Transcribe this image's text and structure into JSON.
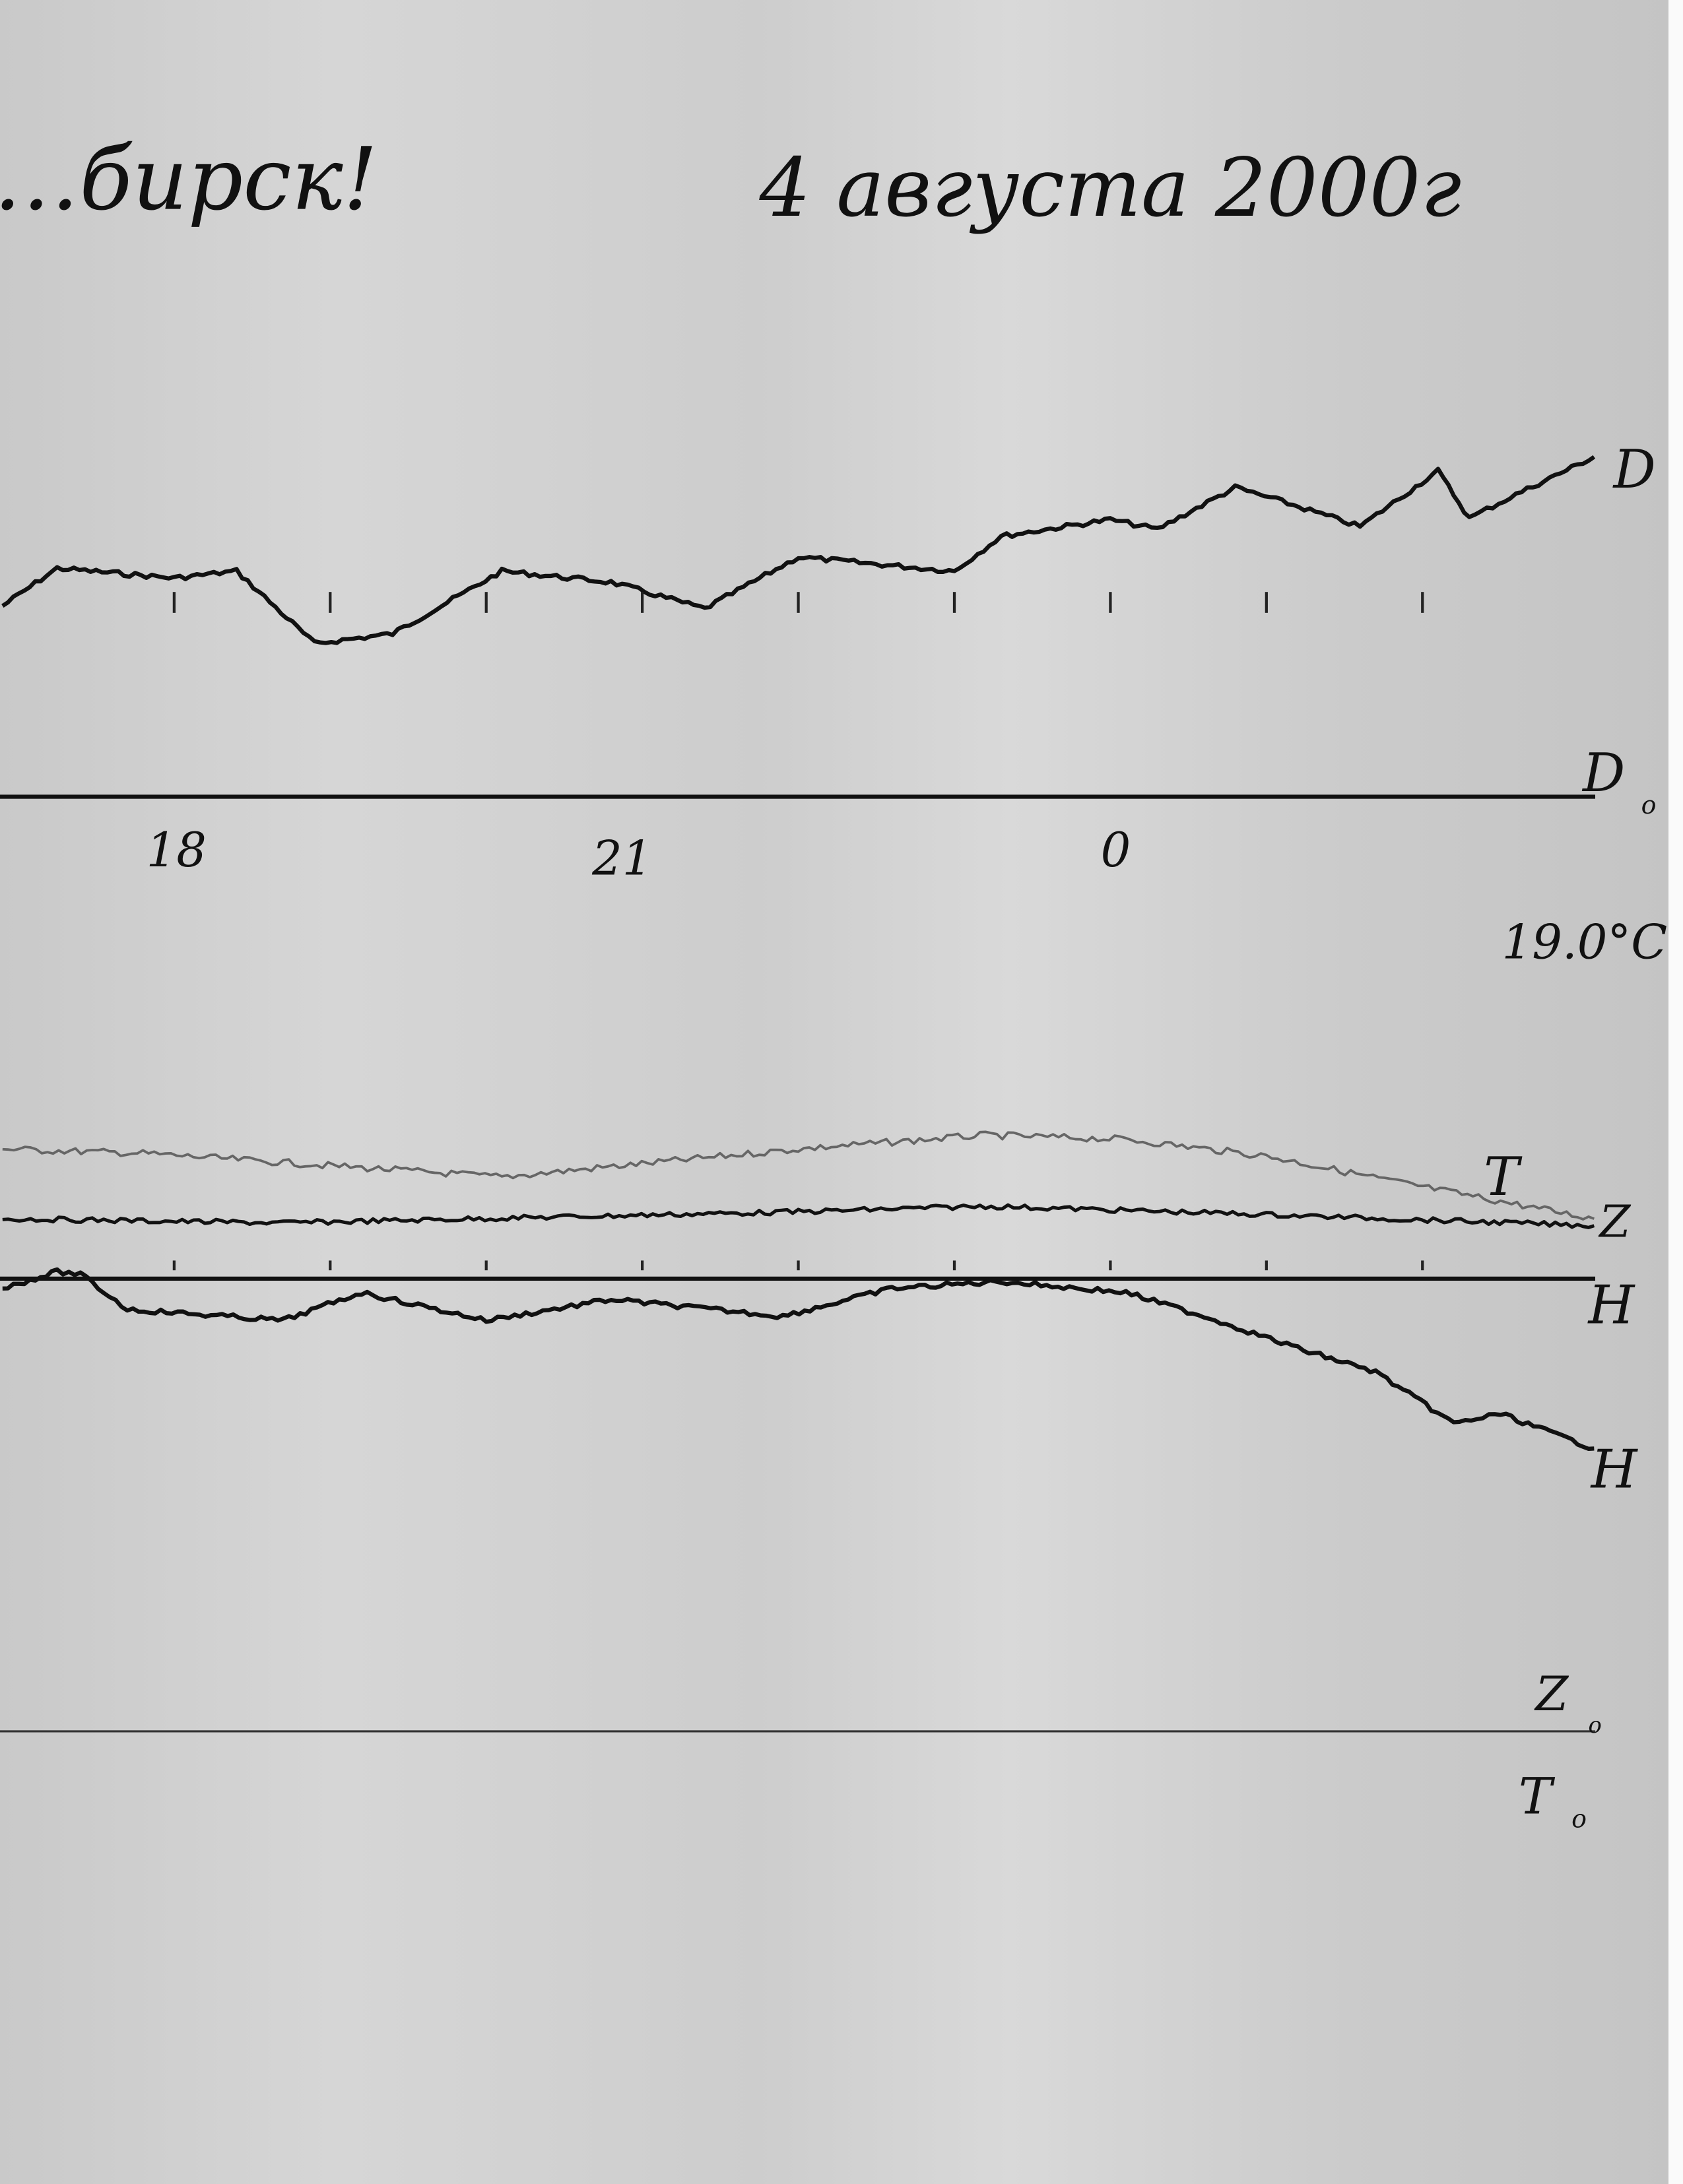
{
  "header": {
    "station": "…бирск!",
    "date": "4 августа 2000г"
  },
  "temperature_label": "19.0°C",
  "colors": {
    "paper": "#d2d2d2",
    "ink": "#111111",
    "trace_T": "#555555"
  },
  "chart_data": {
    "type": "line",
    "title": "",
    "xlabel": "",
    "ylabel": "",
    "x_tick_labels": [
      "18",
      "21",
      "0"
    ],
    "x_ticks_hours": [
      18,
      21,
      24
    ],
    "grid": false,
    "baselines": [
      {
        "label": "D₀",
        "text": "D",
        "sub": "o"
      },
      {
        "label": "H",
        "text": "H",
        "sub": ""
      },
      {
        "label": "Z₀ / T₀",
        "text": "Z",
        "sub": "o",
        "text2": "T",
        "sub2": "o"
      }
    ],
    "series": [
      {
        "name": "D",
        "values_hours": [
          16.9,
          17.25,
          18,
          18.4,
          18.9,
          19.4,
          20.1,
          20.8,
          21.4,
          22,
          23,
          23.3,
          24,
          24.3,
          24.8,
          25.1,
          25.6,
          26.1,
          26.3,
          26.6,
          27.1
        ],
        "values": [
          13.7,
          16.4,
          15.7,
          16.2,
          11.0,
          11.7,
          16.2,
          15.4,
          13.5,
          17.2,
          16.2,
          18.7,
          19.9,
          19.2,
          22.2,
          21.2,
          19.4,
          23.4,
          20.0,
          21.7,
          24.4
        ]
      },
      {
        "name": "T",
        "values_hours": [
          16.9,
          17.8,
          20.1,
          22,
          23.2,
          24.1,
          25,
          25.9,
          27.1
        ],
        "values": [
          46.5,
          46.2,
          44.5,
          46.5,
          47.5,
          47.2,
          46.0,
          44.0,
          41.5
        ]
      },
      {
        "name": "Z",
        "values_hours": [
          16.9,
          18.7,
          22,
          23.2,
          25,
          27.1
        ],
        "values": [
          36.8,
          36.5,
          37.3,
          37.7,
          37.1,
          36.3
        ]
      },
      {
        "name": "H",
        "values_hours": [
          16.9,
          17.25,
          17.4,
          17.7,
          18.7,
          19.2,
          20.0,
          20.8,
          21.9,
          22.6,
          23.3,
          24.1,
          24.6,
          25.2,
          25.7,
          26.2,
          26.5,
          27.1
        ],
        "values": [
          -0.7,
          0.5,
          0.3,
          -2.2,
          -3.0,
          -1.0,
          -3.0,
          -1.5,
          -2.7,
          -0.7,
          -0.2,
          -1.0,
          -2.7,
          -5.0,
          -6.7,
          -10.4,
          -9.7,
          -12.2
        ]
      }
    ]
  }
}
